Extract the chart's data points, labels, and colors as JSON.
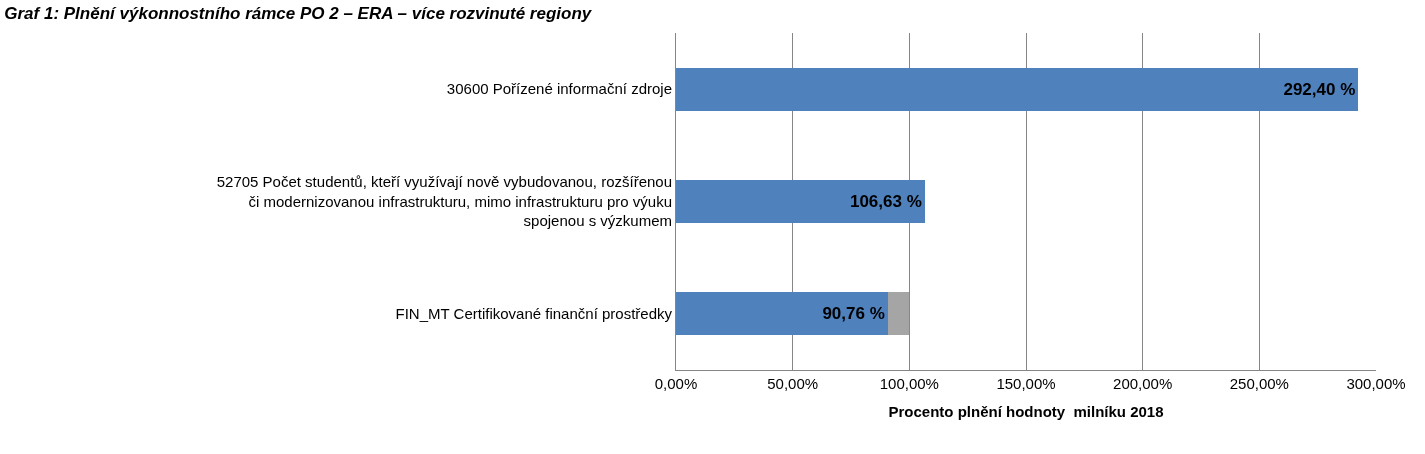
{
  "chart_data": {
    "type": "bar",
    "orientation": "horizontal",
    "stacked": true,
    "title": "Graf 1: Plnění výkonnostního rámce PO 2 – ERA – více rozvinuté regiony",
    "xlabel": "Procento plnění hodnoty  milníku 2018",
    "categories": [
      "30600 Pořízené informační zdroje",
      "52705 Počet studentů, kteří využívají nově vybudovanou, rozšířenou\nči modernizovanou infrastrukturu, mimo infrastrukturu pro výuku\nspojenou s výzkumem",
      "FIN_MT Certifikované finanční prostředky"
    ],
    "series": [
      {
        "color": "#4f81bd",
        "values": [
          292.4,
          106.63,
          90.76
        ],
        "value_labels": [
          "292,40 %",
          "106,63 %",
          "90,76 %"
        ]
      },
      {
        "color": "#a5a5a5",
        "values": [
          0,
          0,
          9.2
        ]
      }
    ],
    "xlim": [
      0,
      300
    ],
    "xticks": [
      {
        "value": 0,
        "label": "0,00%"
      },
      {
        "value": 50,
        "label": "50,00%"
      },
      {
        "value": 100,
        "label": "100,00%"
      },
      {
        "value": 150,
        "label": "150,00%"
      },
      {
        "value": 200,
        "label": "200,00%"
      },
      {
        "value": 250,
        "label": "250,00%"
      },
      {
        "value": 300,
        "label": "300,00%"
      }
    ],
    "grid": "x"
  }
}
